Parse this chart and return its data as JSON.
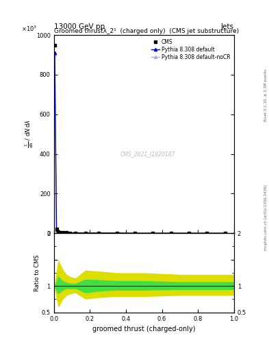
{
  "title_top": "13000 GeV pp",
  "title_right": "Jets",
  "plot_title": "Groomed thrustλ_2¹  (charged only)  (CMS jet substructure)",
  "watermark": "CMS_2021_I1920187",
  "right_label_top": "Rivet 3.1.10, ≥ 3.3M events",
  "right_label_bottom": "mcplots.cern.ch [arXiv:1306.3436]",
  "xlabel": "groomed thrust (charged-only)",
  "ylabel_main": "$\\frac{1}{\\mathrm{d}N}$ / $\\mathrm{d}N$ d$\\lambda$",
  "ylabel_ratio": "Ratio to CMS",
  "ylim_main": [
    0,
    1000
  ],
  "ylim_ratio": [
    0.5,
    2.0
  ],
  "xlim": [
    0,
    1
  ],
  "cms_x": [
    0.005,
    0.015,
    0.025,
    0.035,
    0.05,
    0.07,
    0.09,
    0.12,
    0.175,
    0.25,
    0.35,
    0.45,
    0.55,
    0.65,
    0.75,
    0.85,
    0.95
  ],
  "cms_y": [
    950,
    20,
    8,
    5,
    4,
    3,
    2,
    2,
    1,
    1,
    1,
    0,
    0,
    0,
    0,
    0,
    0
  ],
  "pythia_default_x": [
    0.005,
    0.015,
    0.025,
    0.035,
    0.05,
    0.07,
    0.09,
    0.12,
    0.175,
    0.25,
    0.35,
    0.45,
    0.55,
    0.65,
    0.75,
    0.85,
    0.95
  ],
  "pythia_default_y": [
    910,
    18,
    7,
    5,
    3,
    3,
    2,
    2,
    1,
    1,
    1,
    0,
    0,
    0,
    0,
    0,
    0
  ],
  "pythia_nocr_x": [
    0.005,
    0.015,
    0.025,
    0.035,
    0.05,
    0.07,
    0.09,
    0.12,
    0.175,
    0.25,
    0.35,
    0.45,
    0.55,
    0.65,
    0.75,
    0.85,
    0.95
  ],
  "pythia_nocr_y": [
    905,
    17,
    7,
    4,
    3,
    3,
    2,
    2,
    1,
    1,
    1,
    0,
    0,
    0,
    0,
    0,
    0
  ],
  "ratio_x": [
    0.005,
    0.015,
    0.025,
    0.035,
    0.05,
    0.07,
    0.09,
    0.12,
    0.175,
    0.25,
    0.35,
    0.5,
    0.7,
    0.9,
    1.0
  ],
  "ratio_green_lo": [
    0.97,
    0.9,
    0.85,
    0.88,
    0.92,
    0.95,
    0.95,
    0.95,
    0.87,
    0.9,
    0.92,
    0.92,
    0.93,
    0.93,
    0.93
  ],
  "ratio_green_hi": [
    1.03,
    1.1,
    1.2,
    1.15,
    1.1,
    1.07,
    1.05,
    1.05,
    1.13,
    1.12,
    1.1,
    1.1,
    1.08,
    1.08,
    1.08
  ],
  "ratio_yellow_lo": [
    0.93,
    0.75,
    0.6,
    0.65,
    0.75,
    0.82,
    0.85,
    0.87,
    0.75,
    0.78,
    0.8,
    0.8,
    0.82,
    0.82,
    0.82
  ],
  "ratio_yellow_hi": [
    1.07,
    1.3,
    1.5,
    1.42,
    1.32,
    1.22,
    1.18,
    1.15,
    1.3,
    1.28,
    1.25,
    1.25,
    1.22,
    1.22,
    1.22
  ],
  "color_cms": "#000000",
  "color_pythia_default": "#0000cc",
  "color_pythia_nocr": "#aaaadd",
  "color_green": "#44dd44",
  "color_yellow": "#dddd00",
  "background_color": "#ffffff"
}
